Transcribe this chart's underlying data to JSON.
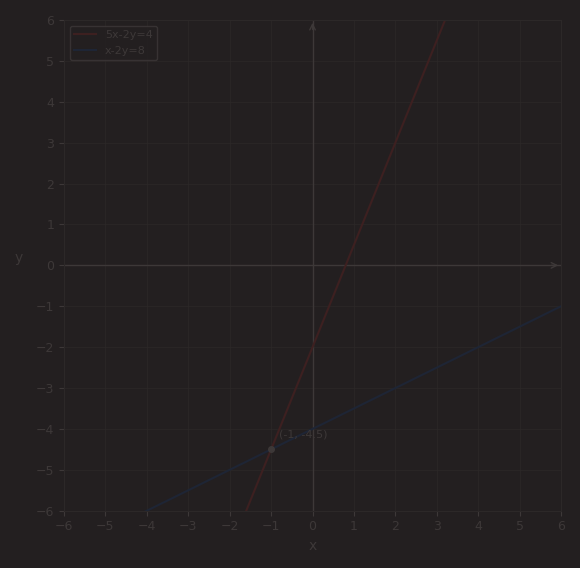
{
  "background_color": "#231f20",
  "axis_color": "#3d3838",
  "grid_color": "#2c2828",
  "text_color": "#3d3838",
  "line1_color": "#3d2020",
  "line2_color": "#1e2535",
  "point_color": "#3d3838",
  "eq1": "5x-2y=4",
  "eq2": "x-2y=8",
  "intersection": [
    -1,
    -4.5
  ],
  "xlim": [
    -6,
    6
  ],
  "ylim": [
    -6,
    6
  ],
  "tick_step": 1,
  "line1_label": "5x-2y=4",
  "line2_label": "x-2y=8",
  "xlabel": "x",
  "ylabel": "y",
  "figsize": [
    5.8,
    5.68
  ],
  "dpi": 100
}
